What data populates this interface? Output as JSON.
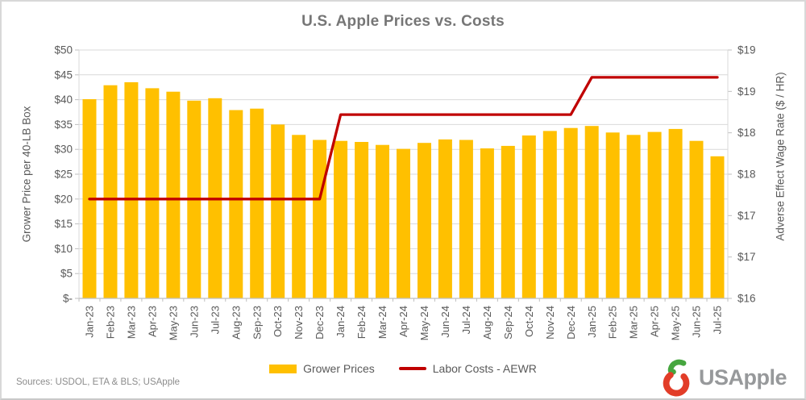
{
  "footer": {
    "sources": "Sources: USDOL, ETA & BLS; USApple"
  },
  "logo": {
    "text": "USApple",
    "apple_color": "#E23D28",
    "leaf_color": "#46A63F",
    "text_color": "#97999B"
  },
  "legend": [
    {
      "label": "Grower Prices",
      "swatch": "bar",
      "color": "#FFC000"
    },
    {
      "label": "Labor Costs - AEWR",
      "swatch": "line",
      "color": "#C00000"
    }
  ],
  "colors": {
    "bar": "#FFC000",
    "line": "#C00000",
    "gridline": "#D9D9D9",
    "axis_line": "#BFBFBF",
    "tick_text": "#595959"
  },
  "chart_data": {
    "type": "bar",
    "title": "U.S. Apple Prices vs. Costs",
    "categories": [
      "Jan-23",
      "Feb-23",
      "Mar-23",
      "Apr-23",
      "May-23",
      "Jun-23",
      "Jul-23",
      "Aug-23",
      "Sep-23",
      "Oct-23",
      "Nov-23",
      "Dec-23",
      "Jan-24",
      "Feb-24",
      "Mar-24",
      "Apr-24",
      "May-24",
      "Jun-24",
      "Jul-24",
      "Aug-24",
      "Sep-24",
      "Oct-24",
      "Nov-24",
      "Dec-24",
      "Jan-25",
      "Feb-25",
      "Mar-25",
      "Apr-25",
      "May-25",
      "Jun-25",
      "Jul-25"
    ],
    "series": [
      {
        "name": "Grower Prices",
        "type": "bar",
        "axis": "left",
        "color": "#FFC000",
        "values": [
          40.1,
          42.9,
          43.5,
          42.3,
          41.6,
          39.8,
          40.3,
          37.9,
          38.2,
          35.0,
          32.9,
          31.9,
          31.7,
          31.5,
          30.9,
          30.1,
          31.3,
          32.0,
          31.9,
          30.2,
          30.7,
          32.8,
          33.7,
          34.3,
          34.7,
          33.4,
          32.9,
          33.5,
          34.1,
          31.7,
          28.6
        ]
      },
      {
        "name": "Labor Costs - AEWR",
        "type": "line",
        "axis": "right",
        "color": "#C00000",
        "values": [
          17.2,
          17.2,
          17.2,
          17.2,
          17.2,
          17.2,
          17.2,
          17.2,
          17.2,
          17.2,
          17.2,
          17.2,
          18.22,
          18.22,
          18.22,
          18.22,
          18.22,
          18.22,
          18.22,
          18.22,
          18.22,
          18.22,
          18.22,
          18.22,
          18.67,
          18.67,
          18.67,
          18.67,
          18.67,
          18.67,
          18.67
        ]
      }
    ],
    "left_axis": {
      "title": "Grower Price per 40-LB Box",
      "min": 0,
      "max": 50,
      "step": 5,
      "tick_labels": [
        "$50",
        "$45",
        "$40",
        "$35",
        "$30",
        "$25",
        "$20",
        "$15",
        "$10",
        "$5",
        "$-"
      ]
    },
    "right_axis": {
      "title": "Adverse Effect Wage Rate ($ / HR)",
      "min": 16,
      "max": 19,
      "step": 0.5,
      "tick_labels": [
        "$19",
        "$19",
        "$18",
        "$18",
        "$17",
        "$17",
        "$16"
      ]
    },
    "grid": true,
    "legend_position": "bottom"
  }
}
